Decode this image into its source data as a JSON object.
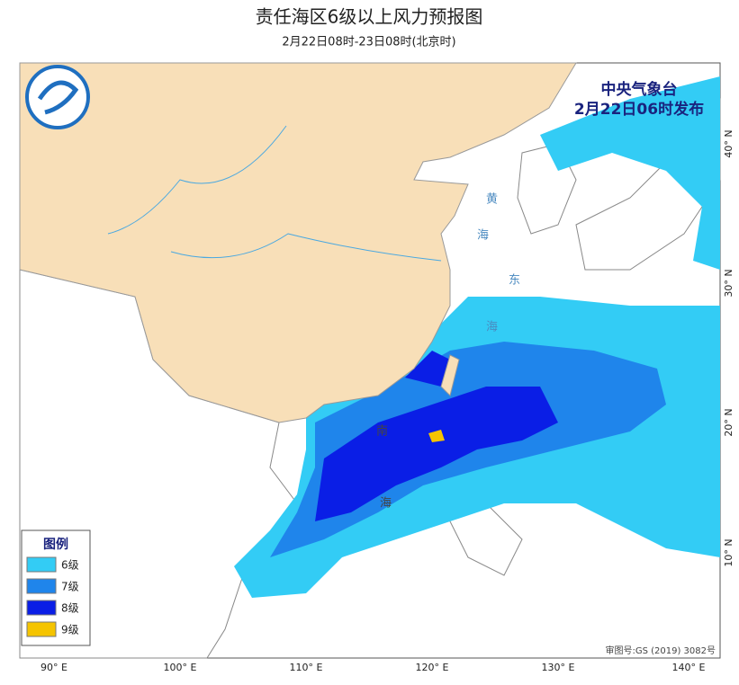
{
  "header": {
    "title": "责任海区6级以上风力预报图",
    "subtitle": "2月22日08时-23日08时(北京时)"
  },
  "agency": {
    "name": "中央气象台",
    "issued": "2月22日06时发布"
  },
  "legend": {
    "title": "图例",
    "items": [
      {
        "label": "6级",
        "color": "#33ccf5"
      },
      {
        "label": "7级",
        "color": "#1f85eb"
      },
      {
        "label": "8级",
        "color": "#0a1ee6"
      },
      {
        "label": "9级",
        "color": "#f5c400"
      }
    ]
  },
  "longitude_labels": [
    "90° E",
    "100° E",
    "110° E",
    "120° E",
    "130° E",
    "140° E"
  ],
  "latitude_labels": [
    "40° N",
    "30° N",
    "20° N",
    "10° N"
  ],
  "sea_labels": [
    "黄",
    "海",
    "东",
    "海",
    "南",
    "海"
  ],
  "approval": "审图号:GS (2019) 3082号"
}
